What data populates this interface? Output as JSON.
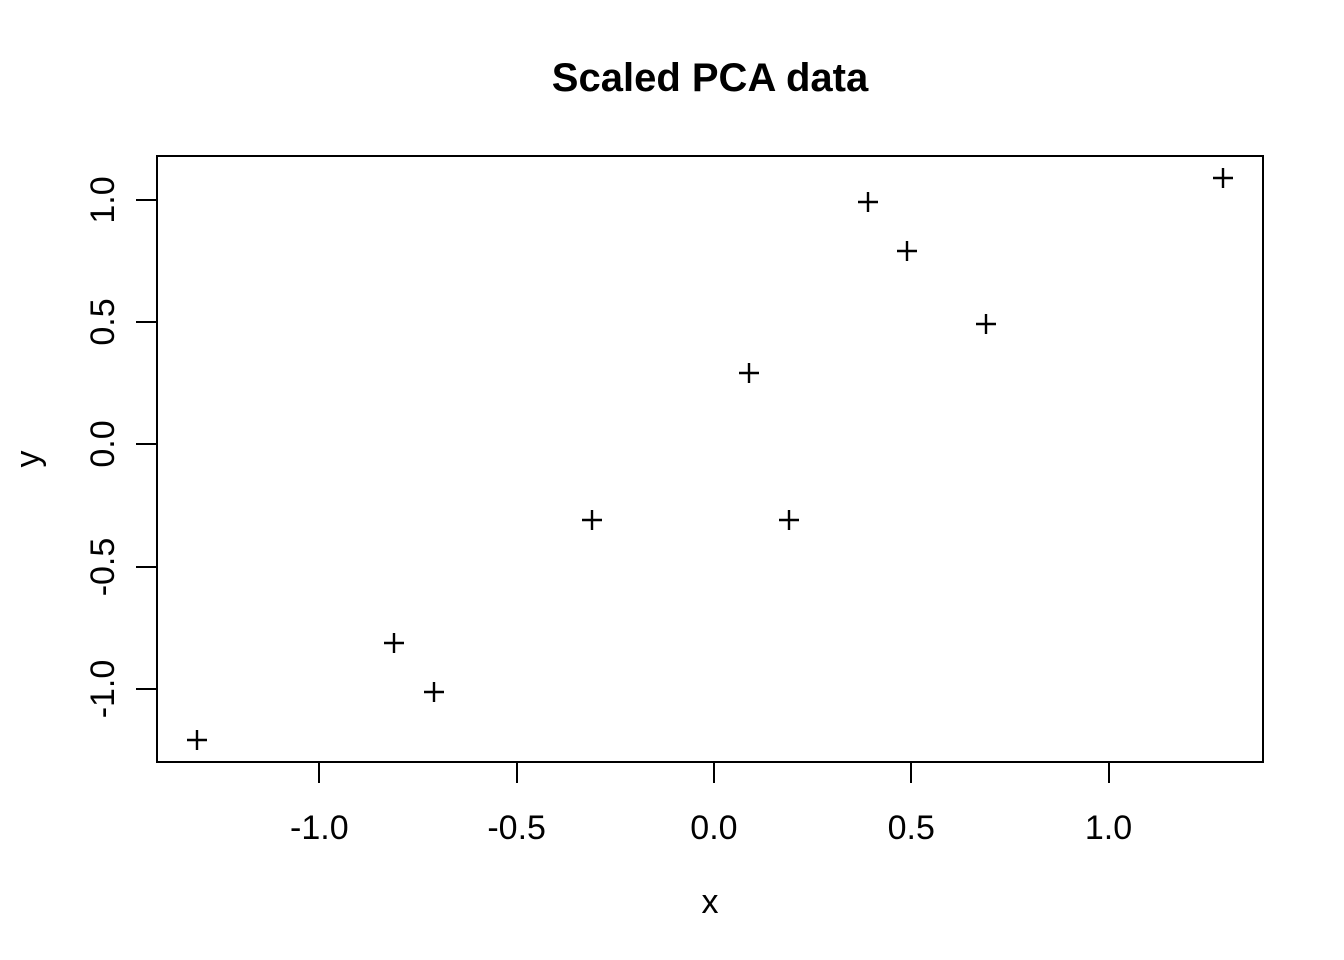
{
  "chart_data": {
    "type": "scatter",
    "title": "Scaled PCA data",
    "xlabel": "x",
    "ylabel": "y",
    "marker": "plus",
    "marker_color": "#000000",
    "background_color": "#ffffff",
    "axis_color": "#000000",
    "grid": false,
    "legend": null,
    "xlim": [
      -1.414,
      1.394
    ],
    "ylim": [
      -1.302,
      1.182
    ],
    "x_ticks": [
      -1.0,
      -0.5,
      0.0,
      0.5,
      1.0
    ],
    "x_tick_labels": [
      "-1.0",
      "-0.5",
      "0.0",
      "0.5",
      "1.0"
    ],
    "y_ticks": [
      -1.0,
      -0.5,
      0.0,
      0.5,
      1.0
    ],
    "y_tick_labels": [
      "-1.0",
      "-0.5",
      "0.0",
      "0.5",
      "1.0"
    ],
    "points": [
      {
        "x": 0.69,
        "y": 0.49
      },
      {
        "x": -1.31,
        "y": -1.21
      },
      {
        "x": 0.39,
        "y": 0.99
      },
      {
        "x": 0.09,
        "y": 0.29
      },
      {
        "x": 1.29,
        "y": 1.09
      },
      {
        "x": 0.49,
        "y": 0.79
      },
      {
        "x": 0.19,
        "y": -0.31
      },
      {
        "x": -0.81,
        "y": -0.81
      },
      {
        "x": -0.31,
        "y": -0.31
      },
      {
        "x": -0.71,
        "y": -1.01
      }
    ]
  }
}
